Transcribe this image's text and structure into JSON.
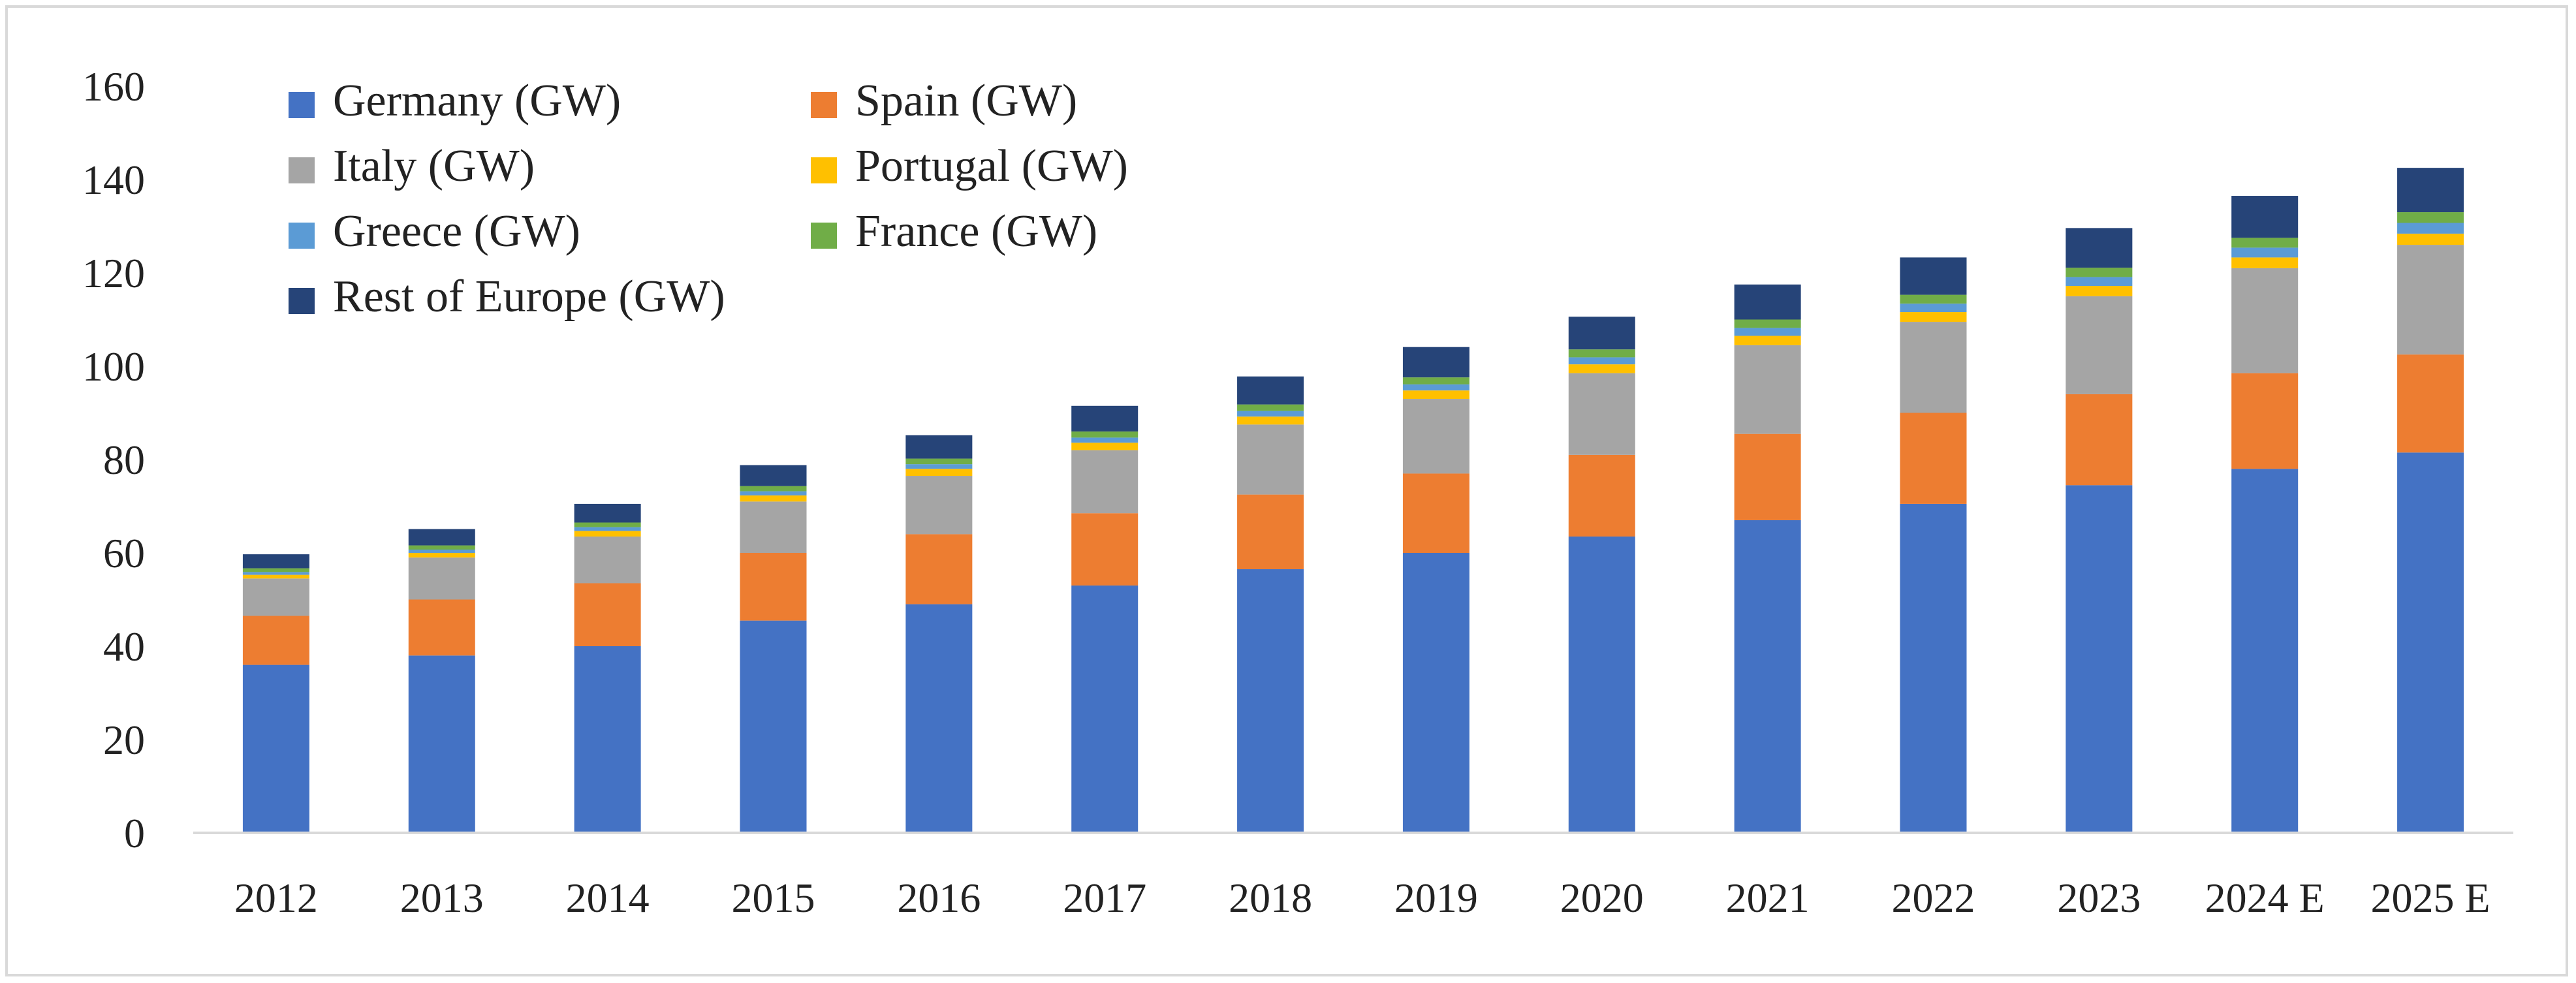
{
  "chart_data": {
    "type": "bar",
    "stacked": true,
    "categories": [
      "2012",
      "2013",
      "2014",
      "2015",
      "2016",
      "2017",
      "2018",
      "2019",
      "2020",
      "2021",
      "2022",
      "2023",
      "2024 E",
      "2025 E"
    ],
    "series": [
      {
        "name": "Germany (GW)",
        "color": "#4472c4",
        "values": [
          36,
          38,
          40,
          45.5,
          49,
          53,
          56.5,
          60,
          63.5,
          67,
          70.5,
          74.5,
          78,
          81.5
        ]
      },
      {
        "name": "Spain (GW)",
        "color": "#ed7d31",
        "values": [
          10.5,
          12,
          13.5,
          14.5,
          15,
          15.5,
          16,
          17,
          17.5,
          18.5,
          19.5,
          19.5,
          20.5,
          21
        ]
      },
      {
        "name": "Italy (GW)",
        "color": "#a5a5a5",
        "values": [
          8,
          9,
          10,
          11,
          12.5,
          13.5,
          15,
          16,
          17.5,
          19,
          19.5,
          21,
          22.5,
          23.5
        ]
      },
      {
        "name": "Portugal (GW)",
        "color": "#ffc000",
        "values": [
          0.8,
          1,
          1.2,
          1.3,
          1.5,
          1.6,
          1.7,
          1.8,
          1.9,
          2,
          2.1,
          2.2,
          2.3,
          2.4
        ]
      },
      {
        "name": "Greece (GW)",
        "color": "#5b9bd5",
        "values": [
          0.6,
          0.7,
          0.8,
          0.9,
          1,
          1.1,
          1.2,
          1.3,
          1.5,
          1.7,
          1.8,
          1.9,
          2.1,
          2.3
        ]
      },
      {
        "name": "France (GW)",
        "color": "#70ad47",
        "values": [
          0.8,
          0.9,
          1,
          1.1,
          1.2,
          1.3,
          1.4,
          1.5,
          1.7,
          1.8,
          1.9,
          2,
          2.1,
          2.3
        ]
      },
      {
        "name": "Rest of Europe (GW)",
        "color": "#264478",
        "values": [
          3,
          3.5,
          4,
          4.5,
          5,
          5.5,
          6,
          6.5,
          7,
          7.5,
          8,
          8.5,
          9,
          9.5
        ]
      }
    ],
    "title": "",
    "xlabel": "",
    "ylabel": "",
    "ylim": [
      0,
      160
    ],
    "yticks": [
      0,
      20,
      40,
      60,
      80,
      100,
      120,
      140,
      160
    ],
    "grid": false,
    "legend_position": "top-left"
  }
}
